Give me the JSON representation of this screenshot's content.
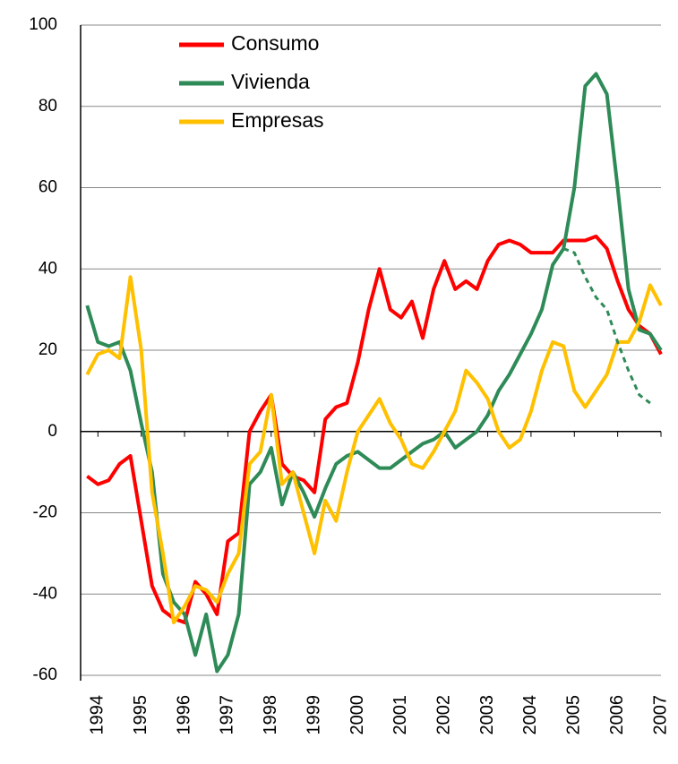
{
  "chart_data": {
    "type": "line",
    "x": [
      1993.75,
      1994,
      1994.25,
      1994.5,
      1994.75,
      1995,
      1995.25,
      1995.5,
      1995.75,
      1996,
      1996.25,
      1996.5,
      1996.75,
      1997,
      1997.25,
      1997.5,
      1997.75,
      1998,
      1998.25,
      1998.5,
      1998.75,
      1999,
      1999.25,
      1999.5,
      1999.75,
      2000,
      2000.25,
      2000.5,
      2000.75,
      2001,
      2001.25,
      2001.5,
      2001.75,
      2002,
      2002.25,
      2002.5,
      2002.75,
      2003,
      2003.25,
      2003.5,
      2003.75,
      2004,
      2004.25,
      2004.5,
      2004.75,
      2005,
      2005.25,
      2005.5,
      2005.75,
      2006,
      2006.25,
      2006.5,
      2006.75,
      2007
    ],
    "series": [
      {
        "name": "Consumo",
        "color": "#ff0000",
        "values": [
          -11,
          -13,
          -12,
          -8,
          -6,
          -22,
          -38,
          -44,
          -46,
          -47,
          -37,
          -40,
          -45,
          -27,
          -25,
          0,
          5,
          9,
          -8,
          -11,
          -12,
          -15,
          3,
          6,
          7,
          17,
          30,
          40,
          30,
          28,
          32,
          23,
          35,
          42,
          35,
          37,
          35,
          42,
          46,
          47,
          46,
          44,
          44,
          44,
          47,
          47,
          47,
          48,
          45,
          37,
          30,
          26,
          24,
          19
        ]
      },
      {
        "name": "Vivienda",
        "color": "#2e8b57",
        "values": [
          31,
          22,
          21,
          22,
          15,
          2,
          -10,
          -35,
          -42,
          -45,
          -55,
          -45,
          -59,
          -55,
          -45,
          -13,
          -10,
          -4,
          -18,
          -10,
          -15,
          -21,
          -14,
          -8,
          -6,
          -5,
          -7,
          -9,
          -9,
          -7,
          -5,
          -3,
          -2,
          0,
          -4,
          -2,
          0,
          4,
          10,
          14,
          19,
          24,
          30,
          41,
          45,
          60,
          85,
          88,
          83,
          60,
          35,
          25,
          24,
          20
        ]
      },
      {
        "name": "Empresas",
        "color": "#ffc000",
        "values": [
          14,
          19,
          20,
          18,
          38,
          20,
          -15,
          -30,
          -47,
          -43,
          -38,
          -39,
          -42,
          -35,
          -30,
          -8,
          -5,
          9,
          -13,
          -10,
          -20,
          -30,
          -17,
          -22,
          -10,
          0,
          4,
          8,
          2,
          -2,
          -8,
          -9,
          -5,
          0,
          5,
          15,
          12,
          8,
          0,
          -4,
          -2,
          5,
          15,
          22,
          21,
          10,
          6,
          10,
          14,
          22,
          22,
          27,
          36,
          31
        ]
      },
      {
        "color": "#2e8b57",
        "dashed": true,
        "values": [
          null,
          null,
          null,
          null,
          null,
          null,
          null,
          null,
          null,
          null,
          null,
          null,
          null,
          null,
          null,
          null,
          null,
          null,
          null,
          null,
          null,
          null,
          null,
          null,
          null,
          null,
          null,
          null,
          null,
          null,
          null,
          null,
          null,
          null,
          null,
          null,
          null,
          null,
          null,
          null,
          null,
          null,
          null,
          null,
          45,
          44,
          38,
          33,
          30,
          22,
          15,
          9,
          7,
          null
        ]
      }
    ],
    "xlim": [
      1993.6,
      2007
    ],
    "xticks": [
      1994,
      1995,
      1996,
      1997,
      1998,
      1999,
      2000,
      2001,
      2002,
      2003,
      2004,
      2005,
      2006,
      2007
    ],
    "ylim": [
      -60,
      100
    ],
    "yticks": [
      -60,
      -40,
      -20,
      0,
      20,
      40,
      60,
      80,
      100
    ],
    "grid": true,
    "legend": "top-left"
  }
}
